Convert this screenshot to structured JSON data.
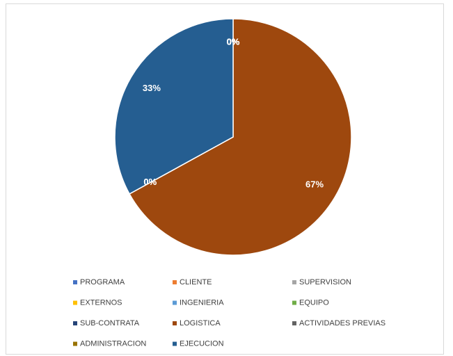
{
  "chart_data": {
    "type": "pie",
    "categories": [
      "PROGRAMA",
      "CLIENTE",
      "SUPERVISION",
      "EXTERNOS",
      "INGENIERIA",
      "EQUIPO",
      "SUB-CONTRATA",
      "LOGISTICA",
      "ACTIVIDADES PREVIAS",
      "ADMINISTRACION",
      "EJECUCION"
    ],
    "values": [
      0,
      0,
      0,
      0,
      0,
      0,
      0,
      67,
      0,
      0,
      33
    ],
    "value_labels": [
      "0%",
      "0%",
      "0%",
      "0%",
      "0%",
      "0%",
      "0%",
      "67%",
      "0%",
      "0%",
      "33%"
    ],
    "colors": [
      "#4472c4",
      "#ed7d31",
      "#a5a5a5",
      "#ffc000",
      "#5b9bd5",
      "#70ad47",
      "#264478",
      "#9e480e",
      "#636363",
      "#997300",
      "#255e91"
    ],
    "legend": "bottom"
  }
}
